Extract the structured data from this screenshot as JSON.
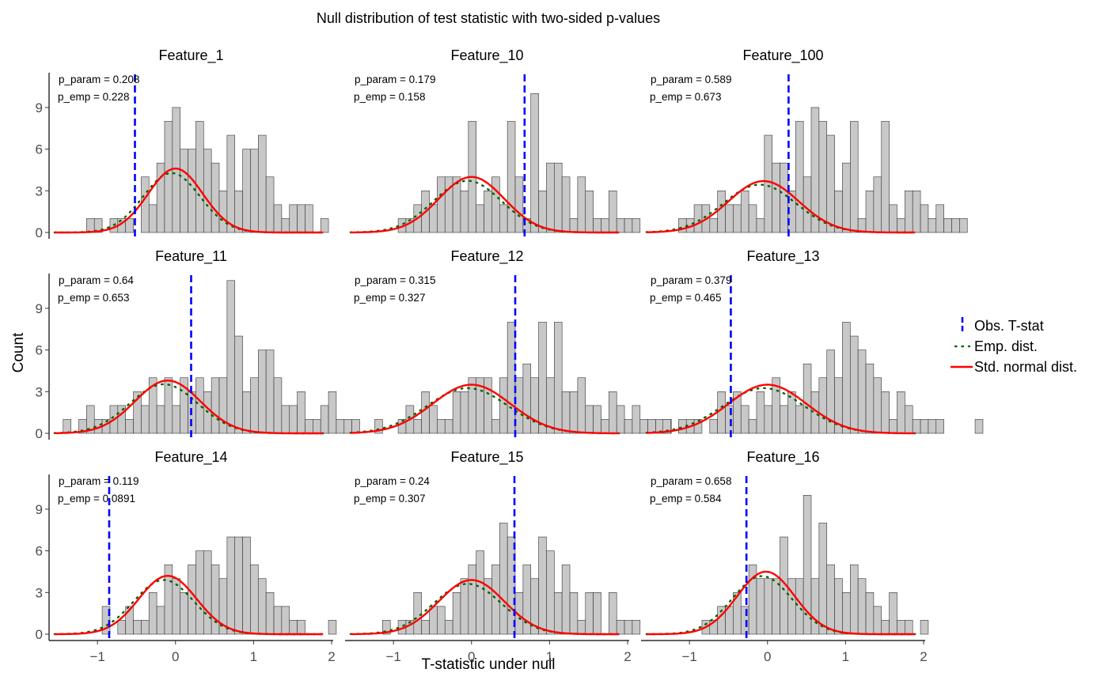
{
  "chart_data": {
    "type": "histogram-facets",
    "title": "Null distribution of test statistic with two-sided p-values",
    "xlabel": "T-statistic under null",
    "ylabel": "Count",
    "xlim": [
      -1.6,
      2.0
    ],
    "ylim": [
      0,
      11.5
    ],
    "xticks": [
      -1,
      0,
      1,
      2
    ],
    "yticks": [
      0,
      3,
      6,
      9
    ],
    "bin_start": -1.54,
    "bin_width": 0.1,
    "legend": {
      "position": "right",
      "entries": [
        {
          "label": "Obs. T-stat",
          "color": "#0000ff",
          "style": "dashed"
        },
        {
          "label": "Emp. dist.",
          "color": "#006400",
          "style": "dotted"
        },
        {
          "label": "Std. normal dist.",
          "color": "#ff0000",
          "style": "solid"
        }
      ]
    },
    "panels": [
      {
        "name": "Feature_1",
        "p_param": "p_param = 0.208",
        "p_emp": "p_emp = 0.228",
        "obs": -0.52,
        "norm_mean": 0.0,
        "norm_sd": 0.35,
        "norm_peak": 4.6,
        "counts": [
          0,
          0,
          0,
          0,
          1,
          1,
          0,
          1,
          1,
          1,
          0,
          4,
          2,
          5,
          8,
          9,
          6,
          6,
          8,
          6,
          5,
          3,
          7,
          3,
          6,
          6,
          7,
          4,
          2,
          1,
          2,
          2,
          2,
          0,
          1,
          0,
          0,
          0,
          0,
          0,
          0,
          0,
          0,
          0
        ]
      },
      {
        "name": "Feature_10",
        "p_param": "p_param = 0.179",
        "p_emp": "p_emp = 0.158",
        "obs": 0.68,
        "norm_mean": 0.0,
        "norm_sd": 0.42,
        "norm_peak": 4.0,
        "counts": [
          0,
          0,
          0,
          0,
          0,
          0,
          1,
          1,
          2,
          3,
          2,
          4,
          4,
          4,
          3,
          8,
          2,
          3,
          4,
          2,
          8,
          4,
          1,
          10,
          3,
          5,
          5,
          4,
          1,
          4,
          3,
          1,
          1,
          3,
          1,
          1,
          1,
          0,
          0,
          0,
          0,
          0,
          0,
          0
        ]
      },
      {
        "name": "Feature_100",
        "p_param": "p_param = 0.589",
        "p_emp": "p_emp = 0.673",
        "obs": 0.27,
        "norm_mean": -0.05,
        "norm_sd": 0.45,
        "norm_peak": 3.7,
        "counts": [
          0,
          0,
          0,
          0,
          1,
          1,
          2,
          2,
          1,
          3,
          2,
          2,
          3,
          2,
          1,
          7,
          5,
          5,
          3,
          8,
          4,
          9,
          8,
          7,
          3,
          5,
          8,
          1,
          3,
          4,
          8,
          2,
          1,
          3,
          3,
          2,
          1,
          2,
          1,
          1,
          1,
          0,
          0,
          0
        ]
      },
      {
        "name": "Feature_11",
        "p_param": "p_param = 0.64",
        "p_emp": "p_emp = 0.653",
        "obs": 0.2,
        "norm_mean": -0.1,
        "norm_sd": 0.42,
        "norm_peak": 3.8,
        "counts": [
          0,
          1,
          0,
          1,
          2,
          1,
          1,
          2,
          2,
          1,
          3,
          2,
          4,
          2,
          4,
          2,
          4,
          3,
          4,
          3,
          4,
          4,
          11,
          7,
          3,
          4,
          6,
          6,
          4,
          2,
          2,
          3,
          1,
          1,
          2,
          3,
          1,
          1,
          1,
          0,
          0,
          0,
          0,
          0
        ]
      },
      {
        "name": "Feature_12",
        "p_param": "p_param = 0.315",
        "p_emp": "p_emp = 0.327",
        "obs": 0.56,
        "norm_mean": 0.0,
        "norm_sd": 0.5,
        "norm_peak": 3.5,
        "counts": [
          0,
          0,
          0,
          1,
          0,
          0,
          1,
          2,
          1,
          3,
          2,
          1,
          1,
          3,
          3,
          4,
          4,
          4,
          1,
          4,
          8,
          4,
          5,
          4,
          8,
          4,
          8,
          3,
          3,
          4,
          2,
          2,
          1,
          3,
          2,
          1,
          2,
          1,
          1,
          1,
          1,
          0,
          0,
          0
        ]
      },
      {
        "name": "Feature_13",
        "p_param": "p_param = 0.379",
        "p_emp": "p_emp = 0.465",
        "obs": -0.47,
        "norm_mean": 0.0,
        "norm_sd": 0.5,
        "norm_peak": 3.5,
        "counts": [
          0,
          0,
          1,
          0,
          1,
          1,
          1,
          0,
          1,
          3,
          2,
          3,
          2,
          1,
          3,
          2,
          4,
          2,
          3,
          2,
          5,
          3,
          4,
          6,
          4,
          8,
          7,
          6,
          5,
          4,
          3,
          1,
          3,
          2,
          1,
          1,
          1,
          1,
          0,
          0,
          0,
          0,
          1,
          0
        ]
      },
      {
        "name": "Feature_14",
        "p_param": "p_param = 0.119",
        "p_emp": "p_emp = 0.0891",
        "obs": -0.85,
        "norm_mean": -0.1,
        "norm_sd": 0.37,
        "norm_peak": 4.2,
        "counts": [
          0,
          0,
          0,
          0,
          0,
          0,
          2,
          0,
          1,
          2,
          1,
          1,
          3,
          2,
          5,
          4,
          3,
          5,
          6,
          6,
          5,
          4,
          7,
          7,
          7,
          5,
          4,
          3,
          2,
          2,
          1,
          1,
          0,
          0,
          0,
          1,
          0,
          0,
          0,
          0,
          0,
          0,
          0,
          0
        ]
      },
      {
        "name": "Feature_15",
        "p_param": "p_param = 0.24",
        "p_emp": "p_emp = 0.307",
        "obs": 0.55,
        "norm_mean": 0.0,
        "norm_sd": 0.42,
        "norm_peak": 3.9,
        "counts": [
          0,
          0,
          0,
          0,
          1,
          0,
          1,
          1,
          3,
          1,
          2,
          2,
          1,
          3,
          4,
          5,
          6,
          4,
          5,
          8,
          7,
          3,
          5,
          4,
          7,
          6,
          3,
          5,
          3,
          1,
          3,
          3,
          0,
          3,
          1,
          1,
          1,
          0,
          0,
          0,
          0,
          0,
          0,
          0
        ]
      },
      {
        "name": "Feature_16",
        "p_param": "p_param = 0.658",
        "p_emp": "p_emp = 0.584",
        "obs": -0.27,
        "norm_mean": -0.02,
        "norm_sd": 0.37,
        "norm_peak": 4.5,
        "counts": [
          0,
          0,
          0,
          0,
          0,
          0,
          0,
          1,
          1,
          2,
          2,
          3,
          2,
          5,
          4,
          4,
          4,
          7,
          4,
          4,
          10,
          4,
          8,
          5,
          4,
          3,
          5,
          4,
          3,
          2,
          1,
          3,
          1,
          1,
          0,
          1,
          0,
          0,
          0,
          0,
          0,
          0,
          0,
          0
        ]
      }
    ]
  }
}
